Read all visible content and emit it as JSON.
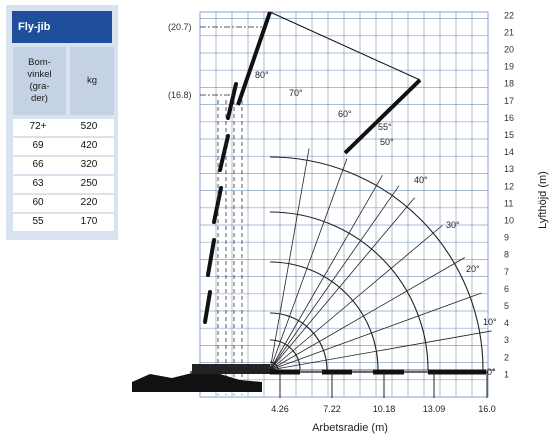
{
  "table": {
    "title": "Fly-jib",
    "header_angle": "Bom-\nvinkel\n(gra-\nder)",
    "header_angle_lines": [
      "Bom-",
      "vinkel",
      "(gra-",
      "der)"
    ],
    "header_kg": "kg",
    "rows": [
      {
        "angle": "72+",
        "kg": "520"
      },
      {
        "angle": "69",
        "kg": "420"
      },
      {
        "angle": "66",
        "kg": "320"
      },
      {
        "angle": "63",
        "kg": "250"
      },
      {
        "angle": "60",
        "kg": "220"
      },
      {
        "angle": "55",
        "kg": "170"
      }
    ]
  },
  "diagram": {
    "y_axis_label": "Lyfthöjd (m)",
    "x_axis_label": "Arbetsradie (m)",
    "y_ticks": [
      "1",
      "2",
      "3",
      "4",
      "5",
      "6",
      "7",
      "8",
      "9",
      "10",
      "11",
      "12",
      "13",
      "14",
      "15",
      "16",
      "17",
      "18",
      "19",
      "20",
      "21",
      "22"
    ],
    "x_ticks": [
      "4.26",
      "7.22",
      "10.18",
      "13.09",
      "16.0"
    ],
    "height_callouts": [
      "(20.7)",
      "(16.8)"
    ],
    "angle_labels": [
      "80°",
      "70°",
      "60°",
      "55°",
      "50°",
      "40°",
      "30°",
      "20°",
      "10°",
      "0°"
    ],
    "grid_color": "#8aa3c8",
    "line_color": "#222222"
  }
}
